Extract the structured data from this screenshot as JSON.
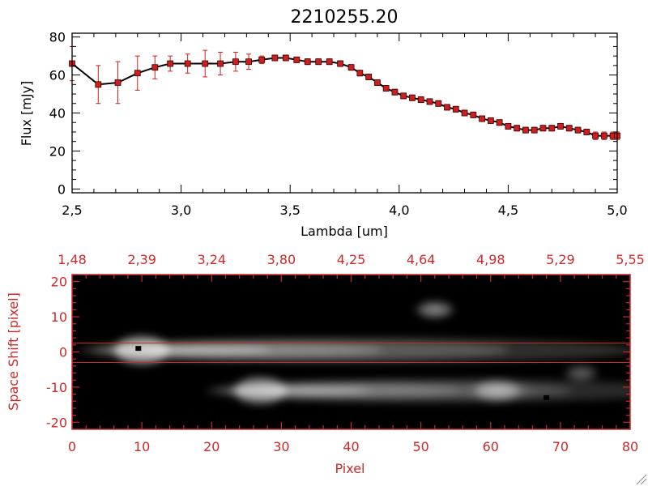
{
  "title": "2210255.20",
  "colors": {
    "axis_top": "#000000",
    "line": "#000000",
    "marker": "#cc1f1f",
    "errorbar": "#cc1f1f",
    "axis_bottom": "#cc2a2a",
    "extract_line": "#cc2a2a"
  },
  "chart_data": [
    {
      "type": "line",
      "title": "2210255.20",
      "xlabel": "Lambda [um]",
      "ylabel": "Flux [mJy]",
      "xlim": [
        2.5,
        5.0
      ],
      "ylim": [
        -2,
        82
      ],
      "x_ticks": [
        2.5,
        3.0,
        3.5,
        4.0,
        4.5,
        5.0
      ],
      "x_tick_labels": [
        "2,5",
        "3,0",
        "3,5",
        "4,0",
        "4,5",
        "5,0"
      ],
      "y_ticks": [
        0,
        20,
        40,
        60,
        80
      ],
      "y_tick_labels": [
        "0",
        "20",
        "40",
        "60",
        "80"
      ],
      "grid": false,
      "series": [
        {
          "x": [
            2.5,
            2.62,
            2.71,
            2.8,
            2.88,
            2.95,
            3.03,
            3.11,
            3.18,
            3.25,
            3.31,
            3.37,
            3.43,
            3.48,
            3.53,
            3.58,
            3.63,
            3.68,
            3.73,
            3.78,
            3.82,
            3.86,
            3.9,
            3.94,
            3.98,
            4.02,
            4.06,
            4.1,
            4.14,
            4.18,
            4.22,
            4.26,
            4.3,
            4.34,
            4.38,
            4.42,
            4.46,
            4.5,
            4.54,
            4.58,
            4.62,
            4.66,
            4.7,
            4.74,
            4.78,
            4.82,
            4.86,
            4.9,
            4.94,
            4.98,
            5.0
          ],
          "y": [
            66,
            55,
            56,
            61,
            64,
            66,
            66,
            66,
            66,
            67,
            67,
            68,
            69,
            69,
            68,
            67,
            67,
            67,
            66,
            64,
            61,
            59,
            56,
            53,
            51,
            49,
            48,
            47,
            46,
            45,
            43,
            42,
            40,
            39,
            37,
            36,
            35,
            33,
            32,
            31,
            31,
            32,
            32,
            33,
            32,
            31,
            30,
            28,
            28,
            28,
            28
          ],
          "yerr": [
            9,
            10,
            11,
            9,
            6,
            4,
            5,
            7,
            6,
            5,
            4,
            2,
            1.5,
            1.5,
            1.5,
            1.5,
            1.5,
            1.5,
            1.5,
            1.5,
            1.5,
            1.5,
            1.5,
            1.5,
            1.5,
            1.5,
            1.5,
            1.5,
            1.5,
            1.5,
            1.5,
            1.5,
            1.5,
            1.5,
            1.5,
            1.5,
            1.5,
            1.5,
            1.5,
            1.5,
            1.5,
            1.5,
            1.5,
            1.5,
            1.5,
            1.5,
            1.5,
            2,
            2,
            2,
            2
          ]
        }
      ]
    },
    {
      "type": "heatmap",
      "xlabel": "Pixel",
      "ylabel": "Space Shift [pixel]",
      "xlim": [
        0,
        80
      ],
      "ylim": [
        -22,
        22
      ],
      "x_ticks": [
        0,
        10,
        20,
        30,
        40,
        50,
        60,
        70,
        80
      ],
      "x_tick_labels": [
        "0",
        "10",
        "20",
        "30",
        "40",
        "50",
        "60",
        "70",
        "80"
      ],
      "top_tick_labels": [
        "1,48",
        "2,39",
        "3,24",
        "3,80",
        "4,25",
        "4,64",
        "4,98",
        "5,29",
        "5,55"
      ],
      "y_ticks": [
        -20,
        -10,
        0,
        10,
        20
      ],
      "y_tick_labels": [
        "-20",
        "-10",
        "0",
        "10",
        "20"
      ],
      "extraction_lines": [
        2.5,
        -3.0
      ],
      "sources": [
        {
          "x": 10,
          "y": 0.5,
          "peak": 1.0,
          "length": 80,
          "width": 3.6
        },
        {
          "x": 27,
          "y": -11,
          "peak": 0.9,
          "length": 68,
          "width": 3.4
        },
        {
          "x": 61,
          "y": -11,
          "peak": 0.5,
          "length": 10,
          "width": 2.8
        },
        {
          "x": 52,
          "y": 12,
          "peak": 0.45,
          "length": 6,
          "width": 2.2
        },
        {
          "x": 73,
          "y": -6,
          "peak": 0.3,
          "length": 5,
          "width": 2
        }
      ],
      "bad_pixels": [
        {
          "x": 9.5,
          "y": 1
        },
        {
          "x": 68,
          "y": -13
        }
      ]
    }
  ]
}
